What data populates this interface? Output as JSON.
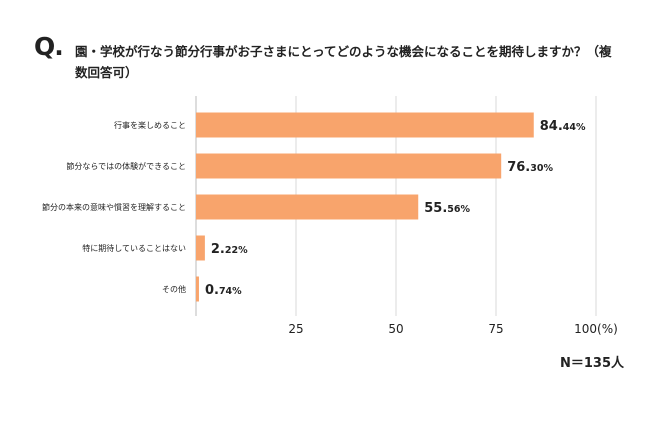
{
  "question": {
    "mark": "Q.",
    "text": "園・学校が行なう節分行事がお子さまにとってどのような機会になることを期待しますか？（複数回答可）"
  },
  "chart_data": {
    "type": "bar",
    "orientation": "horizontal",
    "title": "",
    "categories": [
      "行事を楽しめること",
      "節分ならではの体験ができること",
      "節分の本来の意味や慣習を理解すること",
      "特に期待していることはない",
      "その他"
    ],
    "values": [
      84.44,
      76.3,
      55.56,
      2.22,
      0.74
    ],
    "value_labels": [
      {
        "int": "84.",
        "dec": "44%"
      },
      {
        "int": "76.",
        "dec": "30%"
      },
      {
        "int": "55.",
        "dec": "56%"
      },
      {
        "int": "2.",
        "dec": "22%"
      },
      {
        "int": "0.",
        "dec": "74%"
      }
    ],
    "xlim": [
      0,
      100
    ],
    "x_ticks": [
      {
        "value": 25,
        "label": "25"
      },
      {
        "value": 50,
        "label": "50"
      },
      {
        "value": 75,
        "label": "75"
      },
      {
        "value": 100,
        "label": "100(%)"
      }
    ],
    "grid": true,
    "bar_color": "#F8A46C",
    "grid_color": "#D9D9D9",
    "axis_color": "#BBBBBB"
  },
  "sample_size": "N＝135人"
}
